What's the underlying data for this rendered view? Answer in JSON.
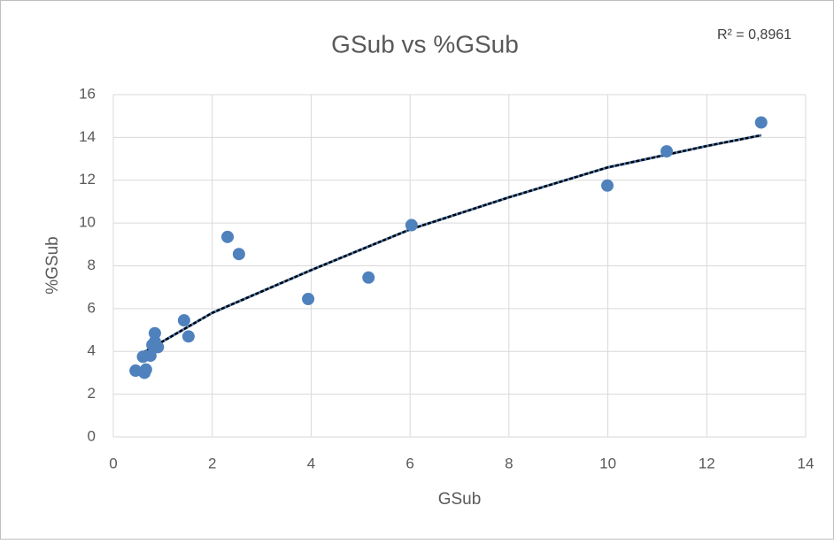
{
  "chart_data": {
    "type": "scatter",
    "title": "GSub vs %GSub",
    "annotation": "R² = 0,8961",
    "x_label": "GSub",
    "y_label": "%GSub",
    "series": [
      {
        "name": "%GSub",
        "color": "#4f81bd",
        "x": [
          0.45,
          0.63,
          0.66,
          0.6,
          0.75,
          0.79,
          0.84,
          0.84,
          0.9,
          1.43,
          1.52,
          2.31,
          2.54,
          3.94,
          5.16,
          6.03,
          9.99,
          11.19,
          13.1
        ],
        "values": [
          3.1,
          3.0,
          3.15,
          3.75,
          3.8,
          4.3,
          4.45,
          4.85,
          4.2,
          5.45,
          4.7,
          9.35,
          8.55,
          6.45,
          7.45,
          9.9,
          11.75,
          13.35,
          14.7
        ]
      }
    ],
    "trendline": {
      "color": "#000000",
      "x": [
        0.5,
        2,
        4,
        6,
        8,
        10,
        12,
        13.1
      ],
      "values": [
        3.8,
        5.8,
        7.8,
        9.7,
        11.2,
        12.6,
        13.6,
        14.1
      ]
    },
    "xlim": [
      0,
      14
    ],
    "xticks": [
      0,
      2,
      4,
      6,
      8,
      10,
      12,
      14
    ],
    "ylim": [
      0,
      16
    ],
    "yticks": [
      0,
      2,
      4,
      6,
      8,
      10,
      12,
      14,
      16
    ],
    "grid": true
  }
}
